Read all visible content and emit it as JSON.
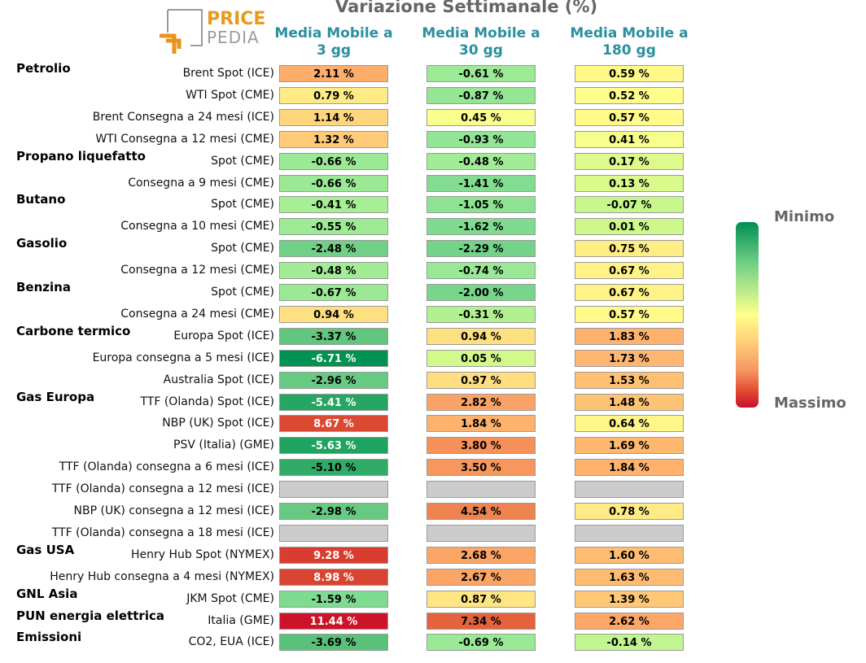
{
  "title": "Variazione Settimanale (%)",
  "logo": {
    "line1": "PRICE",
    "line2": "PEDIA"
  },
  "chart_data": {
    "type": "table",
    "columns": [
      "Media Mobile a\n3 gg",
      "Media Mobile a\n30 gg",
      "Media Mobile a\n180 gg"
    ],
    "column_lines": [
      [
        "Media Mobile a",
        "3 gg"
      ],
      [
        "Media Mobile a",
        "30 gg"
      ],
      [
        "Media Mobile a",
        "180 gg"
      ]
    ],
    "groups": [
      {
        "name": "Petrolio",
        "row": 0
      },
      {
        "name": "Propano liquefatto",
        "row": 4
      },
      {
        "name": "Butano",
        "row": 6
      },
      {
        "name": "Gasolio",
        "row": 8
      },
      {
        "name": "Benzina",
        "row": 10
      },
      {
        "name": "Carbone termico",
        "row": 12
      },
      {
        "name": "Gas Europa",
        "row": 15
      },
      {
        "name": "Gas USA",
        "row": 22
      },
      {
        "name": "GNL Asia",
        "row": 24
      },
      {
        "name": "PUN energia elettrica",
        "row": 25
      },
      {
        "name": "Emissioni",
        "row": 26
      }
    ],
    "rows": [
      {
        "label": "Brent Spot (ICE)",
        "values": [
          2.11,
          -0.61,
          0.59
        ]
      },
      {
        "label": "WTI Spot (CME)",
        "values": [
          0.79,
          -0.87,
          0.52
        ]
      },
      {
        "label": "Brent Consegna a 24 mesi (ICE)",
        "values": [
          1.14,
          0.45,
          0.57
        ]
      },
      {
        "label": "WTI Consegna a 12 mesi (CME)",
        "values": [
          1.32,
          -0.93,
          0.41
        ]
      },
      {
        "label": "Spot (CME)",
        "values": [
          -0.66,
          -0.48,
          0.17
        ]
      },
      {
        "label": "Consegna a 9 mesi (CME)",
        "values": [
          -0.66,
          -1.41,
          0.13
        ]
      },
      {
        "label": "Spot (CME)",
        "values": [
          -0.41,
          -1.05,
          -0.07
        ]
      },
      {
        "label": "Consegna a 10 mesi (CME)",
        "values": [
          -0.55,
          -1.62,
          0.01
        ]
      },
      {
        "label": "Spot (CME)",
        "values": [
          -2.48,
          -2.29,
          0.75
        ]
      },
      {
        "label": "Consegna a 12 mesi (CME)",
        "values": [
          -0.48,
          -0.74,
          0.67
        ]
      },
      {
        "label": "Spot (CME)",
        "values": [
          -0.67,
          -2.0,
          0.67
        ]
      },
      {
        "label": "Consegna a 24 mesi (CME)",
        "values": [
          0.94,
          -0.31,
          0.57
        ]
      },
      {
        "label": "Europa Spot (ICE)",
        "values": [
          -3.37,
          0.94,
          1.83
        ]
      },
      {
        "label": "Europa consegna a 5 mesi (ICE)",
        "values": [
          -6.71,
          0.05,
          1.73
        ]
      },
      {
        "label": "Australia Spot (ICE)",
        "values": [
          -2.96,
          0.97,
          1.53
        ]
      },
      {
        "label": "TTF (Olanda) Spot (ICE)",
        "values": [
          -5.41,
          2.82,
          1.48
        ]
      },
      {
        "label": "NBP (UK) Spot (ICE)",
        "values": [
          8.67,
          1.84,
          0.64
        ]
      },
      {
        "label": "PSV (Italia) (GME)",
        "values": [
          -5.63,
          3.8,
          1.69
        ]
      },
      {
        "label": "TTF (Olanda) consegna a 6 mesi (ICE)",
        "values": [
          -5.1,
          3.5,
          1.84
        ]
      },
      {
        "label": "TTF (Olanda) consegna a 12 mesi (ICE)",
        "values": [
          null,
          null,
          null
        ]
      },
      {
        "label": "NBP (UK) consegna a 12 mesi (ICE)",
        "values": [
          -2.98,
          4.54,
          0.78
        ]
      },
      {
        "label": "TTF (Olanda) consegna a 18 mesi (ICE)",
        "values": [
          null,
          null,
          null
        ]
      },
      {
        "label": "Henry Hub Spot (NYMEX)",
        "values": [
          9.28,
          2.68,
          1.6
        ]
      },
      {
        "label": "Henry Hub consegna a 4 mesi (NYMEX)",
        "values": [
          8.98,
          2.67,
          1.63
        ]
      },
      {
        "label": "JKM Spot (CME)",
        "values": [
          -1.59,
          0.87,
          1.39
        ]
      },
      {
        "label": "Italia (GME)",
        "values": [
          11.44,
          7.34,
          2.62
        ]
      },
      {
        "label": "CO2, EUA (ICE)",
        "values": [
          -3.69,
          -0.69,
          -0.14
        ]
      }
    ],
    "value_suffix": " %",
    "legend": {
      "min_label": "Minimo",
      "max_label": "Massimo"
    }
  },
  "colors": {
    "header": "#2a8fa0",
    "missing": "#cccccc"
  }
}
